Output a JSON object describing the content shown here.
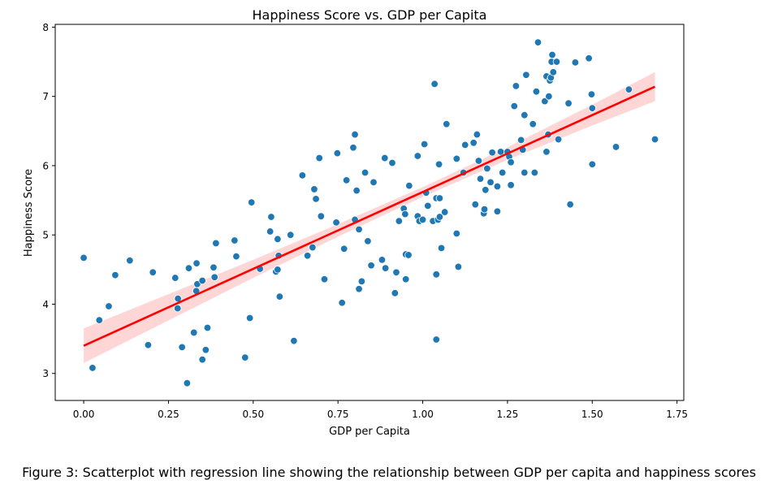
{
  "chart_data": {
    "type": "scatter",
    "title": "Happiness Score vs. GDP per Capita",
    "xlabel": "GDP per Capita",
    "ylabel": "Happiness Score",
    "xlim": [
      -0.084,
      1.77
    ],
    "ylim": [
      2.61,
      8.04
    ],
    "xticks": [
      "0.00",
      "0.25",
      "0.50",
      "0.75",
      "1.00",
      "1.25",
      "1.50",
      "1.75"
    ],
    "yticks": [
      "3",
      "4",
      "5",
      "6",
      "7",
      "8"
    ],
    "grid": false,
    "point_color": "#1f77b4",
    "regression": {
      "color": "#ff0000",
      "ci_color": "#ffcccc",
      "intercept": 3.4,
      "slope": 2.22,
      "ci_x": [
        0.0,
        0.25,
        0.5,
        0.75,
        1.0,
        1.25,
        1.5,
        1.685
      ],
      "ci_half_width": [
        0.25,
        0.19,
        0.13,
        0.09,
        0.07,
        0.09,
        0.15,
        0.21
      ]
    },
    "points": [
      [
        0.0,
        4.67
      ],
      [
        0.026,
        3.08
      ],
      [
        0.046,
        3.77
      ],
      [
        0.074,
        3.97
      ],
      [
        0.093,
        4.42
      ],
      [
        0.136,
        4.63
      ],
      [
        0.19,
        3.41
      ],
      [
        0.204,
        4.46
      ],
      [
        0.27,
        4.38
      ],
      [
        0.278,
        4.08
      ],
      [
        0.277,
        3.94
      ],
      [
        0.29,
        3.38
      ],
      [
        0.305,
        2.86
      ],
      [
        0.31,
        4.52
      ],
      [
        0.325,
        3.59
      ],
      [
        0.333,
        4.59
      ],
      [
        0.335,
        4.29
      ],
      [
        0.332,
        4.19
      ],
      [
        0.35,
        4.34
      ],
      [
        0.35,
        3.2
      ],
      [
        0.36,
        3.34
      ],
      [
        0.365,
        3.66
      ],
      [
        0.383,
        4.53
      ],
      [
        0.386,
        4.39
      ],
      [
        0.39,
        4.88
      ],
      [
        0.445,
        4.92
      ],
      [
        0.45,
        4.69
      ],
      [
        0.476,
        3.23
      ],
      [
        0.49,
        3.8
      ],
      [
        0.495,
        5.47
      ],
      [
        0.52,
        4.51
      ],
      [
        0.55,
        5.05
      ],
      [
        0.553,
        5.26
      ],
      [
        0.567,
        4.47
      ],
      [
        0.572,
        4.5
      ],
      [
        0.572,
        4.94
      ],
      [
        0.575,
        4.7
      ],
      [
        0.578,
        4.11
      ],
      [
        0.61,
        5.0
      ],
      [
        0.62,
        3.47
      ],
      [
        0.645,
        5.86
      ],
      [
        0.66,
        4.7
      ],
      [
        0.675,
        4.82
      ],
      [
        0.68,
        5.66
      ],
      [
        0.685,
        5.52
      ],
      [
        0.695,
        6.11
      ],
      [
        0.7,
        5.27
      ],
      [
        0.71,
        4.36
      ],
      [
        0.745,
        5.18
      ],
      [
        0.748,
        6.18
      ],
      [
        0.762,
        4.02
      ],
      [
        0.768,
        4.8
      ],
      [
        0.775,
        5.79
      ],
      [
        0.795,
        6.26
      ],
      [
        0.8,
        6.45
      ],
      [
        0.8,
        5.22
      ],
      [
        0.805,
        5.64
      ],
      [
        0.812,
        4.22
      ],
      [
        0.812,
        5.08
      ],
      [
        0.82,
        4.33
      ],
      [
        0.83,
        5.9
      ],
      [
        0.838,
        4.91
      ],
      [
        0.848,
        4.56
      ],
      [
        0.855,
        5.76
      ],
      [
        0.88,
        4.64
      ],
      [
        0.888,
        6.11
      ],
      [
        0.89,
        4.52
      ],
      [
        0.91,
        6.04
      ],
      [
        0.918,
        4.16
      ],
      [
        0.922,
        4.46
      ],
      [
        0.93,
        5.2
      ],
      [
        0.944,
        5.38
      ],
      [
        0.948,
        5.3
      ],
      [
        0.95,
        4.72
      ],
      [
        0.95,
        4.36
      ],
      [
        0.958,
        4.71
      ],
      [
        0.96,
        5.71
      ],
      [
        0.985,
        5.27
      ],
      [
        0.985,
        6.14
      ],
      [
        0.99,
        5.2
      ],
      [
        1.0,
        5.22
      ],
      [
        1.005,
        6.31
      ],
      [
        1.01,
        5.61
      ],
      [
        1.015,
        5.42
      ],
      [
        1.03,
        5.2
      ],
      [
        1.035,
        7.18
      ],
      [
        1.04,
        5.53
      ],
      [
        1.04,
        4.43
      ],
      [
        1.04,
        3.49
      ],
      [
        1.045,
        5.22
      ],
      [
        1.048,
        6.02
      ],
      [
        1.05,
        5.53
      ],
      [
        1.05,
        5.26
      ],
      [
        1.055,
        4.81
      ],
      [
        1.065,
        5.33
      ],
      [
        1.07,
        6.6
      ],
      [
        1.1,
        5.02
      ],
      [
        1.1,
        6.1
      ],
      [
        1.105,
        4.54
      ],
      [
        1.12,
        5.9
      ],
      [
        1.125,
        6.3
      ],
      [
        1.15,
        6.33
      ],
      [
        1.155,
        5.44
      ],
      [
        1.16,
        6.45
      ],
      [
        1.165,
        6.07
      ],
      [
        1.17,
        5.81
      ],
      [
        1.18,
        5.31
      ],
      [
        1.182,
        5.37
      ],
      [
        1.185,
        5.65
      ],
      [
        1.19,
        5.96
      ],
      [
        1.2,
        5.76
      ],
      [
        1.205,
        6.19
      ],
      [
        1.22,
        5.34
      ],
      [
        1.22,
        5.7
      ],
      [
        1.23,
        6.2
      ],
      [
        1.235,
        5.9
      ],
      [
        1.25,
        6.2
      ],
      [
        1.255,
        6.13
      ],
      [
        1.26,
        5.72
      ],
      [
        1.26,
        6.05
      ],
      [
        1.27,
        6.86
      ],
      [
        1.275,
        7.15
      ],
      [
        1.29,
        6.37
      ],
      [
        1.295,
        6.23
      ],
      [
        1.3,
        6.73
      ],
      [
        1.3,
        5.9
      ],
      [
        1.305,
        7.31
      ],
      [
        1.325,
        6.6
      ],
      [
        1.33,
        5.9
      ],
      [
        1.335,
        7.07
      ],
      [
        1.34,
        7.78
      ],
      [
        1.36,
        6.93
      ],
      [
        1.365,
        6.2
      ],
      [
        1.365,
        7.29
      ],
      [
        1.37,
        6.45
      ],
      [
        1.372,
        7.0
      ],
      [
        1.375,
        7.23
      ],
      [
        1.378,
        7.27
      ],
      [
        1.38,
        7.5
      ],
      [
        1.382,
        7.6
      ],
      [
        1.385,
        7.35
      ],
      [
        1.395,
        7.5
      ],
      [
        1.4,
        6.38
      ],
      [
        1.43,
        6.9
      ],
      [
        1.435,
        5.44
      ],
      [
        1.45,
        7.49
      ],
      [
        1.49,
        7.55
      ],
      [
        1.498,
        7.03
      ],
      [
        1.5,
        6.83
      ],
      [
        1.5,
        6.02
      ],
      [
        1.57,
        6.27
      ],
      [
        1.608,
        7.1
      ],
      [
        1.685,
        6.38
      ]
    ]
  },
  "caption": "Figure 3: Scatterplot with regression line showing the relationship between GDP per capita and happiness scores"
}
